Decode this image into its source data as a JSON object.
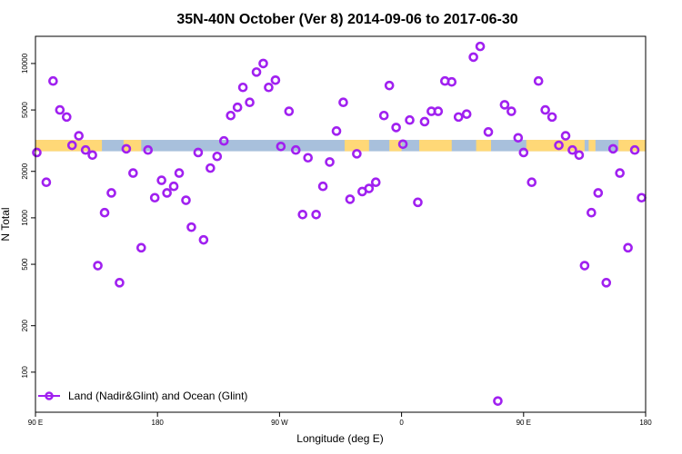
{
  "colors": {
    "marker": "#a020f0",
    "land": "#ffd877",
    "ocean": "#a8c0dc",
    "axis": "#000000"
  },
  "chart_data": {
    "type": "scatter",
    "title": "35N-40N October (Ver 8)   2014-09-06 to 2017-06-30",
    "xlabel": "Longitude (deg E)",
    "ylabel": "N Total",
    "xlim": [
      90,
      540
    ],
    "ylim": [
      55,
      15000
    ],
    "log_y": true,
    "grid": false,
    "legend_position": "bottom-left",
    "x_ticks": [
      {
        "value": 90,
        "label": "90 E"
      },
      {
        "value": 180,
        "label": "180"
      },
      {
        "value": 270,
        "label": "90 W"
      },
      {
        "value": 360,
        "label": "0"
      },
      {
        "value": 450,
        "label": "90 E"
      },
      {
        "value": 540,
        "label": "180"
      }
    ],
    "y_ticks": [
      {
        "value": 100,
        "label": "100"
      },
      {
        "value": 200,
        "label": "200"
      },
      {
        "value": 500,
        "label": "500"
      },
      {
        "value": 1000,
        "label": "1000"
      },
      {
        "value": 2000,
        "label": "2000"
      },
      {
        "value": 5000,
        "label": "5000"
      },
      {
        "value": 10000,
        "label": "10000"
      }
    ],
    "surface_band": {
      "y_range": [
        2700,
        3200
      ],
      "land_segments": [
        [
          90,
          139
        ],
        [
          155,
          168
        ],
        [
          318,
          336
        ],
        [
          351,
          360
        ],
        [
          373,
          397
        ],
        [
          415,
          426
        ],
        [
          452,
          495
        ],
        [
          498,
          503
        ],
        [
          520,
          540
        ]
      ]
    },
    "series": [
      {
        "name": "Land (Nadir&Glint) and Ocean (Glint)",
        "points": [
          [
            91,
            2650
          ],
          [
            98,
            1700
          ],
          [
            103,
            7700
          ],
          [
            108,
            5000
          ],
          [
            113,
            4500
          ],
          [
            117,
            2950
          ],
          [
            122,
            3400
          ],
          [
            127,
            2750
          ],
          [
            132,
            2550
          ],
          [
            136,
            490
          ],
          [
            141,
            1080
          ],
          [
            146,
            1450
          ],
          [
            152,
            380
          ],
          [
            157,
            2800
          ],
          [
            162,
            1950
          ],
          [
            168,
            640
          ],
          [
            173,
            2750
          ],
          [
            178,
            1350
          ],
          [
            183,
            1750
          ],
          [
            187,
            1450
          ],
          [
            192,
            1600
          ],
          [
            196,
            1950
          ],
          [
            201,
            1300
          ],
          [
            205,
            870
          ],
          [
            210,
            2650
          ],
          [
            214,
            720
          ],
          [
            219,
            2100
          ],
          [
            224,
            2500
          ],
          [
            229,
            3150
          ],
          [
            234,
            4600
          ],
          [
            239,
            5200
          ],
          [
            243,
            7000
          ],
          [
            248,
            5600
          ],
          [
            253,
            8800
          ],
          [
            258,
            10000
          ],
          [
            262,
            7000
          ],
          [
            267,
            7800
          ],
          [
            271,
            2900
          ],
          [
            277,
            4900
          ],
          [
            282,
            2750
          ],
          [
            287,
            1050
          ],
          [
            291,
            2450
          ],
          [
            297,
            1050
          ],
          [
            302,
            1600
          ],
          [
            307,
            2300
          ],
          [
            312,
            3650
          ],
          [
            317,
            5600
          ],
          [
            322,
            1320
          ],
          [
            327,
            2600
          ],
          [
            331,
            1480
          ],
          [
            336,
            1550
          ],
          [
            341,
            1700
          ],
          [
            347,
            4600
          ],
          [
            351,
            7200
          ],
          [
            356,
            3850
          ],
          [
            361,
            3000
          ],
          [
            366,
            4300
          ],
          [
            372,
            1260
          ],
          [
            377,
            4200
          ],
          [
            382,
            4900
          ],
          [
            387,
            4900
          ],
          [
            392,
            7700
          ],
          [
            397,
            7600
          ],
          [
            402,
            4500
          ],
          [
            408,
            4700
          ],
          [
            413,
            11000
          ],
          [
            418,
            12900
          ],
          [
            424,
            3600
          ],
          [
            431,
            65
          ],
          [
            436,
            5400
          ],
          [
            441,
            4900
          ],
          [
            446,
            3300
          ],
          [
            450,
            2650
          ],
          [
            456,
            1700
          ],
          [
            461,
            7700
          ],
          [
            466,
            5000
          ],
          [
            471,
            4500
          ],
          [
            476,
            2950
          ],
          [
            481,
            3400
          ],
          [
            486,
            2750
          ],
          [
            491,
            2550
          ],
          [
            495,
            490
          ],
          [
            500,
            1080
          ],
          [
            505,
            1450
          ],
          [
            511,
            380
          ],
          [
            516,
            2800
          ],
          [
            521,
            1950
          ],
          [
            527,
            640
          ],
          [
            532,
            2750
          ],
          [
            537,
            1350
          ]
        ]
      }
    ]
  }
}
